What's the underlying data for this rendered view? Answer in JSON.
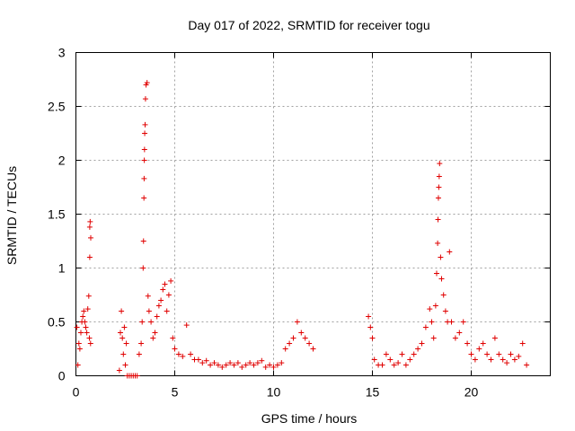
{
  "chart_data": {
    "type": "scatter",
    "title": "Day 017 of 2022, SRMTID for receiver togu",
    "xlabel": "GPS time / hours",
    "ylabel": "SRMTID / TECUs",
    "xlim": [
      0,
      24
    ],
    "ylim": [
      0,
      3
    ],
    "xticks": [
      0,
      5,
      10,
      15,
      20
    ],
    "yticks": [
      0,
      0.5,
      1,
      1.5,
      2,
      2.5,
      3
    ],
    "xtick_labels": [
      "0",
      "5",
      "10",
      "15",
      "20"
    ],
    "ytick_labels": [
      "0",
      "0.5",
      "1",
      "1.5",
      "2",
      "2.5",
      "3"
    ],
    "grid": true,
    "marker": "+",
    "marker_color": "#e00000",
    "series": [
      {
        "name": "SRMTID",
        "x": [
          0.05,
          0.1,
          0.15,
          0.2,
          0.25,
          0.3,
          0.35,
          0.4,
          0.45,
          0.5,
          0.55,
          0.6,
          0.65,
          0.7,
          0.75,
          0.7,
          0.72,
          0.68,
          0.74,
          2.2,
          2.25,
          2.3,
          2.35,
          2.4,
          2.45,
          2.5,
          2.55,
          2.6,
          2.7,
          2.8,
          2.9,
          3.0,
          3.1,
          3.2,
          3.3,
          3.35,
          3.4,
          3.42,
          3.44,
          3.45,
          3.46,
          3.47,
          3.48,
          3.5,
          3.52,
          3.55,
          3.6,
          3.65,
          3.7,
          3.8,
          3.9,
          4.0,
          4.1,
          4.2,
          4.3,
          4.4,
          4.5,
          4.6,
          4.7,
          4.8,
          4.9,
          5.0,
          5.2,
          5.4,
          5.6,
          5.8,
          6.0,
          6.2,
          6.4,
          6.6,
          6.8,
          7.0,
          7.2,
          7.4,
          7.6,
          7.8,
          8.0,
          8.2,
          8.4,
          8.6,
          8.8,
          9.0,
          9.2,
          9.4,
          9.6,
          9.8,
          10.0,
          10.2,
          10.4,
          10.6,
          10.8,
          11.0,
          11.2,
          11.4,
          11.6,
          11.8,
          12.0,
          14.8,
          14.9,
          15.0,
          15.1,
          15.3,
          15.5,
          15.7,
          15.9,
          16.1,
          16.3,
          16.5,
          16.7,
          16.9,
          17.1,
          17.3,
          17.5,
          17.7,
          17.9,
          18.0,
          18.1,
          18.2,
          18.25,
          18.3,
          18.32,
          18.34,
          18.36,
          18.38,
          18.4,
          18.45,
          18.5,
          18.6,
          18.7,
          18.8,
          18.9,
          19.0,
          19.2,
          19.4,
          19.6,
          19.8,
          20.0,
          20.2,
          20.4,
          20.6,
          20.8,
          21.0,
          21.2,
          21.4,
          21.6,
          21.8,
          22.0,
          22.2,
          22.4,
          22.6,
          22.8
        ],
        "y": [
          0.45,
          0.1,
          0.3,
          0.25,
          0.4,
          0.5,
          0.55,
          0.6,
          0.5,
          0.45,
          0.4,
          0.62,
          0.74,
          1.1,
          1.28,
          1.38,
          1.43,
          0.35,
          0.3,
          0.05,
          0.4,
          0.6,
          0.35,
          0.2,
          0.45,
          0.1,
          0.3,
          0.0,
          0.0,
          0.0,
          0.0,
          0.0,
          0.0,
          0.2,
          0.3,
          0.5,
          1.0,
          1.25,
          1.65,
          1.83,
          2.0,
          2.1,
          2.25,
          2.33,
          2.57,
          2.7,
          2.72,
          0.74,
          0.6,
          0.5,
          0.35,
          0.4,
          0.55,
          0.65,
          0.7,
          0.8,
          0.85,
          0.6,
          0.75,
          0.88,
          0.35,
          0.25,
          0.2,
          0.18,
          0.47,
          0.2,
          0.15,
          0.15,
          0.12,
          0.14,
          0.1,
          0.12,
          0.1,
          0.08,
          0.1,
          0.12,
          0.1,
          0.12,
          0.08,
          0.1,
          0.12,
          0.1,
          0.12,
          0.14,
          0.08,
          0.1,
          0.08,
          0.1,
          0.12,
          0.25,
          0.3,
          0.35,
          0.5,
          0.4,
          0.35,
          0.3,
          0.25,
          0.55,
          0.45,
          0.35,
          0.15,
          0.1,
          0.1,
          0.2,
          0.15,
          0.1,
          0.12,
          0.2,
          0.1,
          0.15,
          0.2,
          0.25,
          0.3,
          0.45,
          0.62,
          0.5,
          0.35,
          0.65,
          0.95,
          1.23,
          1.45,
          1.65,
          1.75,
          1.85,
          1.97,
          1.1,
          0.9,
          0.75,
          0.6,
          0.5,
          1.15,
          0.5,
          0.35,
          0.4,
          0.5,
          0.3,
          0.2,
          0.15,
          0.25,
          0.3,
          0.2,
          0.15,
          0.35,
          0.2,
          0.15,
          0.12,
          0.2,
          0.15,
          0.18,
          0.3,
          0.1
        ]
      }
    ]
  }
}
